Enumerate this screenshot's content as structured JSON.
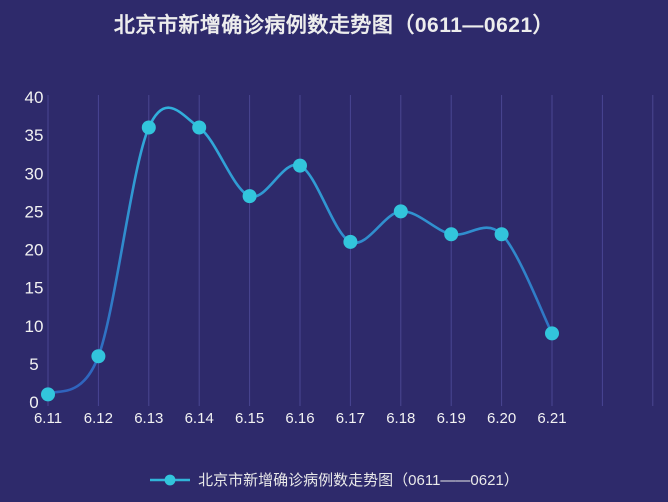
{
  "page": {
    "background_color": "#2e2a6b",
    "text_color": "#ededed"
  },
  "title": {
    "text": "北京市新增确诊病例数走势图（0611—0621）"
  },
  "legend": {
    "label": "北京市新增确诊病例数走势图（0611——0621）",
    "marker": "line-with-dot"
  },
  "chart_data": {
    "type": "line",
    "title": "北京市新增确诊病例数走势图（0611—0621）",
    "categories": [
      "6.11",
      "6.12",
      "6.13",
      "6.14",
      "6.15",
      "6.16",
      "6.17",
      "6.18",
      "6.19",
      "6.20",
      "6.21"
    ],
    "series": [
      {
        "name": "北京市新增确诊病例数走势图（0611——0621）",
        "values": [
          1,
          6,
          36,
          36,
          27,
          31,
          21,
          25,
          22,
          22,
          9
        ]
      }
    ],
    "xlabel": "",
    "ylabel": "",
    "ylim": [
      0,
      40
    ],
    "y_ticks": [
      0,
      5,
      10,
      15,
      20,
      25,
      30,
      35,
      40
    ],
    "grid": "vertical-only",
    "extra_unlabeled_gridlines": 2,
    "smooth": true,
    "legend_position": "bottom",
    "colors": {
      "line_top": "#31b0dc",
      "line_bottom": "#2f62bd",
      "marker": "#32c5dc",
      "gridline": "#4a4693",
      "axis_text": "#f2f2f2"
    }
  }
}
